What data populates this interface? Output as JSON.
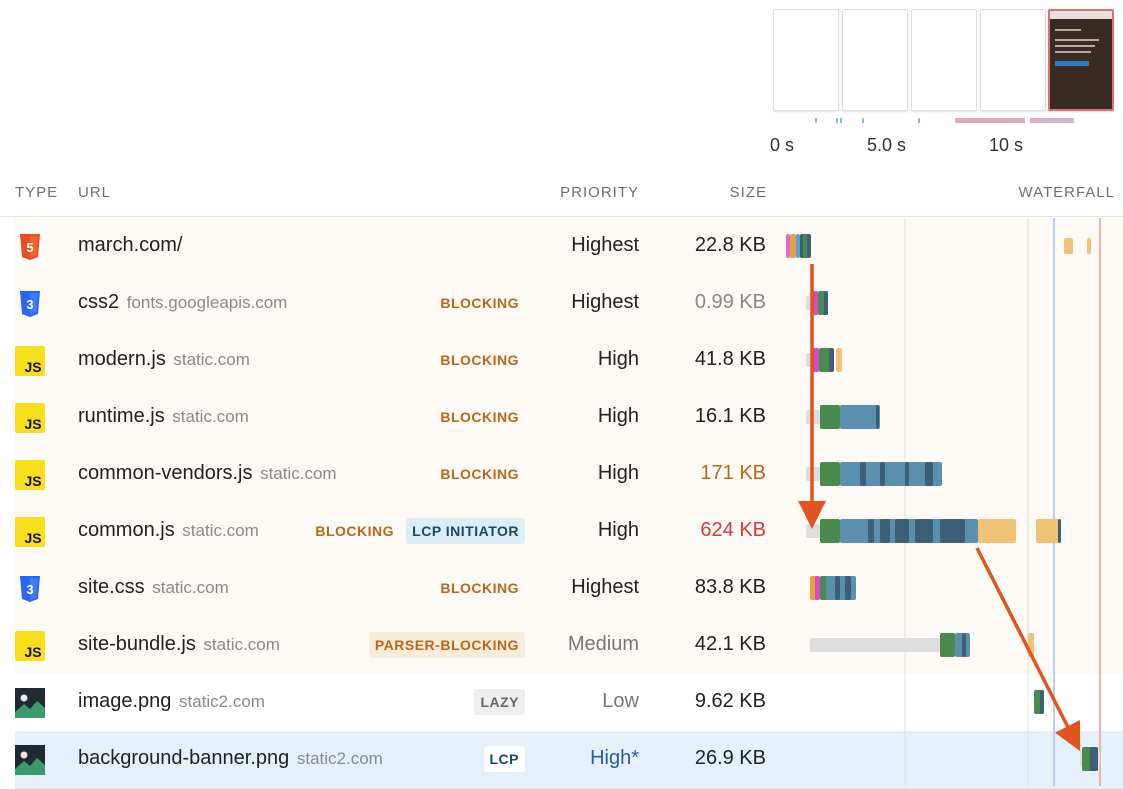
{
  "filmstrip": {
    "frames": [
      {
        "label": "frame-1",
        "lcp": false
      },
      {
        "label": "frame-2",
        "lcp": false
      },
      {
        "label": "frame-3",
        "lcp": false
      },
      {
        "label": "frame-4",
        "lcp": false
      },
      {
        "label": "frame-5",
        "lcp": true
      }
    ],
    "axis_labels": [
      "0 s",
      "5.0 s",
      "10 s"
    ]
  },
  "header": {
    "type": "TYPE",
    "url": "URL",
    "priority": "PRIORITY",
    "size": "SIZE",
    "waterfall": "WATERFALL"
  },
  "requests": [
    {
      "type": "html-icon",
      "name": "march.com/",
      "host": "",
      "badges": [],
      "priority": "Highest",
      "size": "22.8 KB",
      "size_status": "normal",
      "priority_style": "normal"
    },
    {
      "type": "css-icon",
      "name": "css2",
      "host": "fonts.googleapis.com",
      "badges": [
        {
          "label": "BLOCKING",
          "kind": "blocking"
        }
      ],
      "priority": "Highest",
      "size": "0.99 KB",
      "size_status": "muted",
      "priority_style": "normal"
    },
    {
      "type": "js-icon",
      "name": "modern.js",
      "host": "static.com",
      "badges": [
        {
          "label": "BLOCKING",
          "kind": "blocking"
        }
      ],
      "priority": "High",
      "size": "41.8 KB",
      "size_status": "normal",
      "priority_style": "normal"
    },
    {
      "type": "js-icon",
      "name": "runtime.js",
      "host": "static.com",
      "badges": [
        {
          "label": "BLOCKING",
          "kind": "blocking"
        }
      ],
      "priority": "High",
      "size": "16.1 KB",
      "size_status": "normal",
      "priority_style": "normal"
    },
    {
      "type": "js-icon",
      "name": "common-vendors.js",
      "host": "static.com",
      "badges": [
        {
          "label": "BLOCKING",
          "kind": "blocking"
        }
      ],
      "priority": "High",
      "size": "171 KB",
      "size_status": "warn",
      "priority_style": "normal"
    },
    {
      "type": "js-icon",
      "name": "common.js",
      "host": "static.com",
      "badges": [
        {
          "label": "BLOCKING",
          "kind": "blocking"
        },
        {
          "label": "LCP INITIATOR",
          "kind": "initiator"
        }
      ],
      "priority": "High",
      "size": "624 KB",
      "size_status": "bad",
      "priority_style": "normal"
    },
    {
      "type": "css-icon",
      "name": "site.css",
      "host": "static.com",
      "badges": [
        {
          "label": "BLOCKING",
          "kind": "blocking"
        }
      ],
      "priority": "Highest",
      "size": "83.8 KB",
      "size_status": "normal",
      "priority_style": "normal"
    },
    {
      "type": "js-icon",
      "name": "site-bundle.js",
      "host": "static.com",
      "badges": [
        {
          "label": "PARSER-BLOCKING",
          "kind": "parser"
        }
      ],
      "priority": "Medium",
      "size": "42.1 KB",
      "size_status": "normal",
      "priority_style": "muted"
    },
    {
      "type": "image-icon",
      "name": "image.png",
      "host": "static2.com",
      "badges": [
        {
          "label": "LAZY",
          "kind": "lazy"
        }
      ],
      "priority": "Low",
      "size": "9.62 KB",
      "size_status": "normal",
      "priority_style": "muted"
    },
    {
      "type": "image-icon",
      "name": "background-banner.png",
      "host": "static2.com",
      "badges": [
        {
          "label": "LCP",
          "kind": "lcp"
        }
      ],
      "priority": "High*",
      "size": "26.9 KB",
      "size_status": "normal",
      "priority_style": "blue"
    }
  ],
  "colors": {
    "connect": "#4a8a4e",
    "download": "#5a8fae",
    "download_dark": "#3e5f78",
    "queued": "#dddddd",
    "execution": "#efc277",
    "initiator_arrow": "#e05420",
    "lcp_marker": "#e8b4a4",
    "fcp_marker": "#b9ccec"
  }
}
